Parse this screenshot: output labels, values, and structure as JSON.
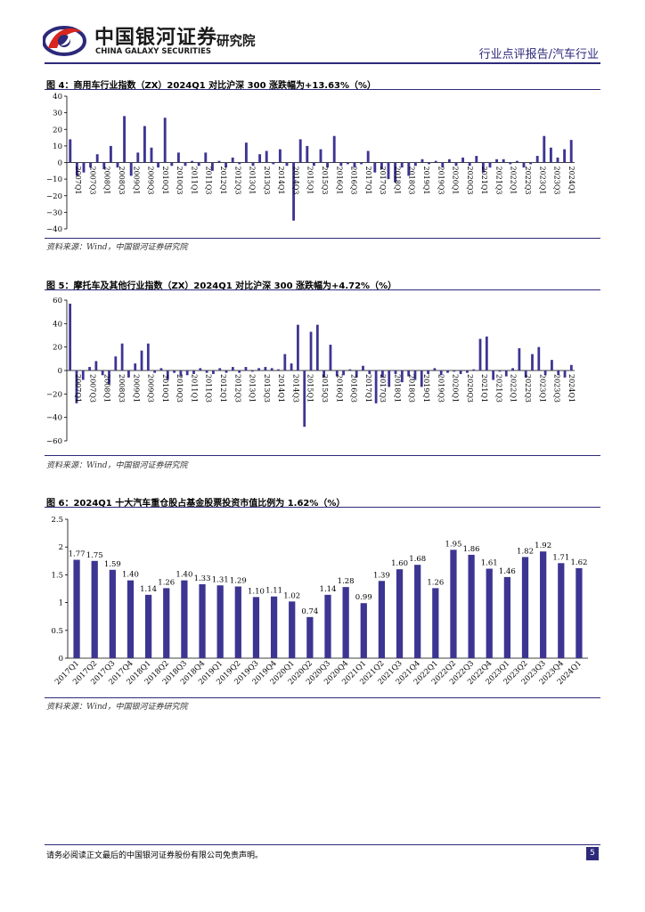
{
  "header": {
    "brand_cn": "中国银河证券",
    "brand_en": "CHINA GALAXY SECURITIES",
    "brand_institute": "研究院",
    "report_type": "行业点评报告/汽车行业",
    "colors": {
      "brand_red": "#d7261e",
      "brand_navy": "#2d2a7a"
    }
  },
  "figures": [
    {
      "title": "图 4：商用车行业指数（ZX）2024Q1 对比沪深 300 涨跌幅为+13.63%（%）",
      "source": "资料来源：Wind，中国银河证券研究院"
    },
    {
      "title": "图 5：摩托车及其他行业指数（ZX）2024Q1 对比沪深 300 涨跌幅为+4.72%（%）",
      "source": "资料来源：Wind，中国银河证券研究院"
    },
    {
      "title": "图 6：2024Q1 十大汽车重仓股占基金股票投资市值比例为 1.62%（%）",
      "source": "资料来源：Wind，中国银河证券研究院"
    }
  ],
  "footer": {
    "disclaimer": "请务必阅读正文最后的中国银河证券股份有限公司免责声明。",
    "page_number": "5"
  },
  "chart_data": [
    {
      "type": "bar",
      "title": "商用车行业指数（ZX）2024Q1 对比沪深 300 涨跌幅为+13.63%（%）",
      "color": "#3d3592",
      "ylim": [
        -40,
        40
      ],
      "yticks": [
        -40,
        -30,
        -20,
        -10,
        0,
        10,
        20,
        30,
        40
      ],
      "tick_labels": [
        "2007Q1",
        "2007Q3",
        "2008Q1",
        "2008Q3",
        "2009Q1",
        "2009Q3",
        "2010Q1",
        "2010Q3",
        "2011Q1",
        "2011Q3",
        "2012Q1",
        "2012Q3",
        "2013Q1",
        "2013Q3",
        "2014Q1",
        "2014Q3",
        "2015Q1",
        "2015Q3",
        "2016Q1",
        "2016Q3",
        "2017Q1",
        "2017Q3",
        "2018Q1",
        "2018Q3",
        "2019Q1",
        "2019Q3",
        "2020Q1",
        "2020Q3",
        "2021Q1",
        "2021Q3",
        "2022Q1",
        "2022Q3",
        "2023Q1",
        "2023Q3",
        "2024Q1"
      ],
      "values": [
        14,
        -8,
        -6,
        -3,
        5,
        -4,
        10,
        -3,
        28,
        -8,
        6,
        22,
        9,
        -3,
        27,
        -2,
        6,
        -2,
        1,
        -2,
        6,
        -5,
        1,
        -3,
        3,
        -1,
        12,
        -2,
        5,
        7,
        -1,
        8,
        -2,
        -35,
        14,
        10,
        -2,
        8,
        -3,
        16,
        -2,
        -1,
        -3,
        -1,
        7,
        -6,
        -4,
        -10,
        -12,
        -3,
        -8,
        -2,
        2,
        -1,
        1,
        -3,
        2,
        -2,
        3,
        -2,
        4,
        -6,
        -3,
        2,
        2,
        -1,
        1,
        -3,
        -1,
        4,
        16,
        9,
        3,
        8,
        13.63
      ]
    },
    {
      "type": "bar",
      "title": "摩托车及其他行业指数（ZX）2024Q1 对比沪深 300 涨跌幅为+4.72%（%）",
      "color": "#3d3592",
      "ylim": [
        -60,
        60
      ],
      "yticks": [
        -60,
        -40,
        -20,
        0,
        20,
        40,
        60
      ],
      "tick_labels": [
        "2007Q1",
        "2007Q3",
        "2008Q1",
        "2008Q3",
        "2009Q1",
        "2009Q3",
        "2010Q1",
        "2010Q3",
        "2011Q1",
        "2011Q3",
        "2012Q1",
        "2012Q3",
        "2013Q1",
        "2013Q3",
        "2014Q1",
        "2014Q3",
        "2015Q1",
        "2015Q3",
        "2016Q1",
        "2016Q3",
        "2017Q1",
        "2017Q3",
        "2018Q1",
        "2018Q3",
        "2019Q1",
        "2019Q3",
        "2020Q1",
        "2020Q3",
        "2021Q1",
        "2021Q3",
        "2022Q1",
        "2022Q3",
        "2023Q1",
        "2023Q3",
        "2024Q1"
      ],
      "values": [
        57,
        -28,
        -8,
        3,
        8,
        -4,
        -12,
        12,
        23,
        -6,
        6,
        17,
        23,
        -2,
        2,
        -8,
        -2,
        -5,
        -4,
        -3,
        2,
        -2,
        -3,
        2,
        -2,
        3,
        -2,
        3,
        -1,
        2,
        3,
        2,
        1,
        14,
        6,
        39,
        -48,
        33,
        39,
        -6,
        22,
        -5,
        -4,
        1,
        -6,
        4,
        -3,
        -28,
        -6,
        -14,
        -3,
        -10,
        -5,
        -8,
        -14,
        -3,
        2,
        -4,
        -2,
        -1,
        -3,
        -2,
        1,
        27,
        29,
        -8,
        -1,
        -5,
        2,
        19,
        -6,
        14,
        20,
        -4,
        9,
        -4,
        -6,
        4.72
      ]
    },
    {
      "type": "bar",
      "title": "2024Q1 十大汽车重仓股占基金股票投资市值比例为 1.62%（%）",
      "color": "#3d3592",
      "ylim": [
        0,
        2.5
      ],
      "yticks": [
        0,
        0.5,
        1,
        1.5,
        2,
        2.5
      ],
      "ytick_labels": [
        "0",
        "0.5",
        "1",
        "1.5",
        "2",
        "2.5"
      ],
      "categories": [
        "2017Q1",
        "2017Q2",
        "2017Q3",
        "2017Q4",
        "2018Q1",
        "2018Q2",
        "2018Q3",
        "2018Q4",
        "2019Q1",
        "2019Q2",
        "2019Q3",
        "2019Q4",
        "2020Q1",
        "2020Q2",
        "2020Q3",
        "2020Q4",
        "2021Q1",
        "2021Q2",
        "2021Q3",
        "2021Q4",
        "2022Q1",
        "2022Q2",
        "2022Q3",
        "2022Q4",
        "2023Q1",
        "2023Q2",
        "2023Q3",
        "2023Q4",
        "2024Q1"
      ],
      "values": [
        1.77,
        1.75,
        1.59,
        1.4,
        1.14,
        1.26,
        1.4,
        1.33,
        1.31,
        1.29,
        1.1,
        1.11,
        1.02,
        0.74,
        1.14,
        1.28,
        0.99,
        1.39,
        1.6,
        1.68,
        1.26,
        1.95,
        1.86,
        1.61,
        1.46,
        1.82,
        1.92,
        1.71,
        1.62
      ],
      "value_labels": [
        "1.77",
        "1.75",
        "1.59",
        "1.40",
        "1.14",
        "1.26",
        "1.40",
        "1.33",
        "1.31",
        "1.29",
        "1.10",
        "1.11",
        "1.02",
        "0.74",
        "1.14",
        "1.28",
        "0.99",
        "1.39",
        "1.60",
        "1.68",
        "1.26",
        "1.95",
        "1.86",
        "1.61",
        "1.46",
        "1.82",
        "1.92",
        "1.71",
        "1.62"
      ]
    }
  ]
}
